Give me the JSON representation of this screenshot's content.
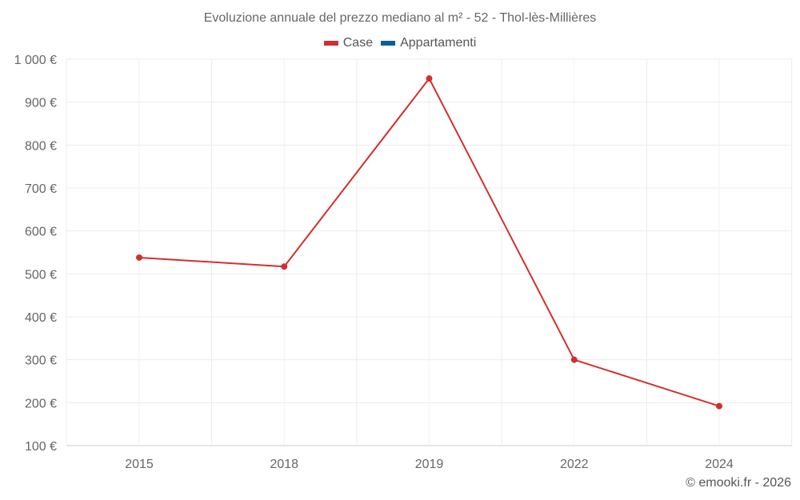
{
  "chart_data": {
    "type": "line",
    "title": "Evoluzione annuale del prezzo mediano al m² - 52 - Thol-lès-Millières",
    "categories": [
      "2015",
      "2018",
      "2019",
      "2022",
      "2024"
    ],
    "series": [
      {
        "name": "Case",
        "color": "#d32f2f",
        "values": [
          538,
          517,
          955,
          300,
          192
        ]
      },
      {
        "name": "Appartamenti",
        "color": "#0b5f99",
        "values": [
          null,
          null,
          null,
          null,
          null
        ]
      }
    ],
    "ylim": [
      100,
      1000
    ],
    "yticks": [
      100,
      200,
      300,
      400,
      500,
      600,
      700,
      800,
      900,
      1000
    ],
    "ytick_labels": [
      "100 €",
      "200 €",
      "300 €",
      "400 €",
      "500 €",
      "600 €",
      "700 €",
      "800 €",
      "900 €",
      "1 000 €"
    ],
    "xlabel": "",
    "ylabel": "",
    "grid": true,
    "legend": "top-center"
  },
  "credit": "© emooki.fr - 2026"
}
